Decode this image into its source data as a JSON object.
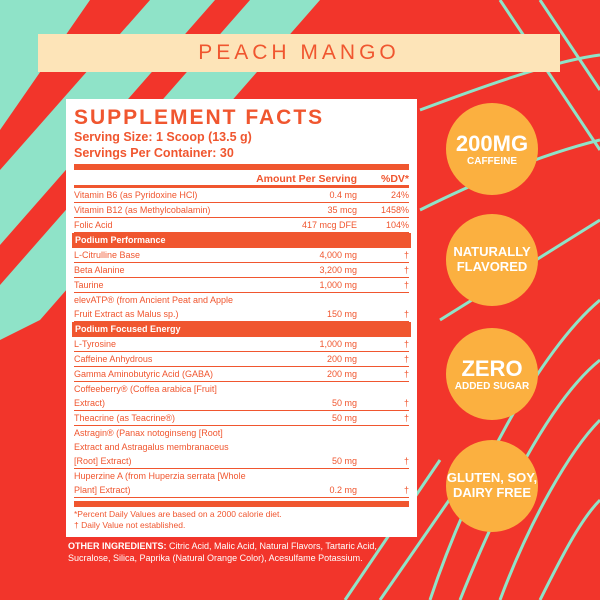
{
  "colors": {
    "background": "#f2352b",
    "accent": "#f0562f",
    "badge": "#fbb040",
    "banner": "#fde4b8",
    "stripe": "#8fe3c8"
  },
  "flavor": "PEACH MANGO",
  "facts": {
    "title": "SUPPLEMENT FACTS",
    "serving_size": "Serving Size: 1 Scoop (13.5 g)",
    "servings": "Servings Per Container: 30",
    "header": {
      "amount": "Amount Per Serving",
      "dv": "%DV*"
    },
    "vitamins": [
      {
        "name": "Vitamin B6 (as Pyridoxine HCl)",
        "amount": "0.4 mg",
        "dv": "24%"
      },
      {
        "name": "Vitamin B12 (as Methylcobalamin)",
        "amount": "35 mcg",
        "dv": "1458%"
      },
      {
        "name": "Folic Acid",
        "amount": "417 mcg DFE",
        "dv": "104%"
      }
    ],
    "section1": "Podium Performance",
    "perf": [
      {
        "name": "L-Citrulline Base",
        "amount": "4,000 mg",
        "dv": "†"
      },
      {
        "name": "Beta Alanine",
        "amount": "3,200 mg",
        "dv": "†"
      },
      {
        "name": "Taurine",
        "amount": "1,000 mg",
        "dv": "†"
      },
      {
        "name": "elevATP® (from Ancient Peat and Apple Fruit Extract as Malus sp.)",
        "amount": "150 mg",
        "dv": "†",
        "tall": true
      }
    ],
    "section2": "Podium Focused Energy",
    "energy": [
      {
        "name": "L-Tyrosine",
        "amount": "1,000 mg",
        "dv": "†"
      },
      {
        "name": "Caffeine Anhydrous",
        "amount": "200 mg",
        "dv": "†"
      },
      {
        "name": "Gamma Aminobutyric Acid (GABA)",
        "amount": "200 mg",
        "dv": "†"
      },
      {
        "name": "Coffeeberry® (Coffea arabica [Fruit] Extract)",
        "amount": "50 mg",
        "dv": "†"
      },
      {
        "name": "Theacrine (as Teacrine®)",
        "amount": "50 mg",
        "dv": "†"
      },
      {
        "name": "Astragin® (Panax notoginseng [Root] Extract and Astragalus membranaceus [Root] Extract)",
        "amount": "50 mg",
        "dv": "†",
        "tall": true
      },
      {
        "name": "Huperzine A (from Huperzia serrata [Whole Plant] Extract)",
        "amount": "0.2 mg",
        "dv": "†",
        "tall": true
      }
    ],
    "footnote1": "*Percent Daily Values are based on a 2000 calorie diet.",
    "footnote2": "† Daily Value not established."
  },
  "other": {
    "label": "OTHER INGREDIENTS:",
    "text": " Citric Acid, Malic Acid, Natural Flavors, Tartaric Acid, Sucralose, Silica, Paprika (Natural Orange Color), Acesulfame Potassium."
  },
  "badges": [
    {
      "line1": "200MG",
      "line2": "CAFFEINE"
    },
    {
      "line1": "NATURALLY",
      "line2": "FLAVORED"
    },
    {
      "line1": "ZERO",
      "line2": "ADDED SUGAR"
    },
    {
      "line1": "GLUTEN, SOY,",
      "line2": "DAIRY FREE"
    }
  ]
}
